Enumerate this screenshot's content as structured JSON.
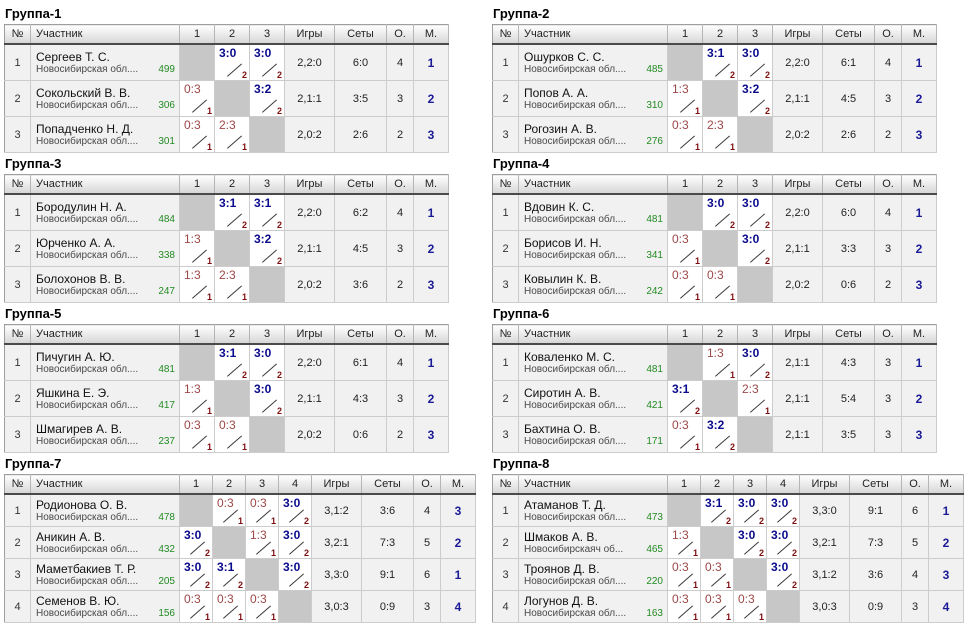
{
  "colors": {
    "win_score": "#0A0A8C",
    "loss_score": "#9C4848",
    "match_points": "#801010",
    "rating": "#228B22",
    "place": "#1A1A96",
    "region_text": "#4A4A4A"
  },
  "labels": {
    "num": "№",
    "participant": "Участник",
    "games": "Игры",
    "sets": "Сеты",
    "points": "О.",
    "place": "М."
  },
  "groups": [
    {
      "title": "Группа-1",
      "match_headers": [
        "1",
        "2",
        "3"
      ],
      "players": [
        {
          "num": "1",
          "name": "Сергеев Т. С.",
          "region": "Новосибирская обл....",
          "rating": "499",
          "matches": [
            null,
            {
              "score": "3:0",
              "win": true,
              "points": "2"
            },
            {
              "score": "3:0",
              "win": true,
              "points": "2"
            }
          ],
          "games": "2,2:0",
          "sets": "6:0",
          "points": "4",
          "place": "1"
        },
        {
          "num": "2",
          "name": "Сокольский В. В.",
          "region": "Новосибирская обл....",
          "rating": "306",
          "matches": [
            {
              "score": "0:3",
              "win": false,
              "points": "1"
            },
            null,
            {
              "score": "3:2",
              "win": true,
              "points": "2"
            }
          ],
          "games": "2,1:1",
          "sets": "3:5",
          "points": "3",
          "place": "2"
        },
        {
          "num": "3",
          "name": "Попадченко Н. Д.",
          "region": "Новосибирская обл....",
          "rating": "301",
          "matches": [
            {
              "score": "0:3",
              "win": false,
              "points": "1"
            },
            {
              "score": "2:3",
              "win": false,
              "points": "1"
            },
            null
          ],
          "games": "2,0:2",
          "sets": "2:6",
          "points": "2",
          "place": "3"
        }
      ]
    },
    {
      "title": "Группа-2",
      "match_headers": [
        "1",
        "2",
        "3"
      ],
      "players": [
        {
          "num": "1",
          "name": "Ошурков С. С.",
          "region": "Новосибирская обл....",
          "rating": "485",
          "matches": [
            null,
            {
              "score": "3:1",
              "win": true,
              "points": "2"
            },
            {
              "score": "3:0",
              "win": true,
              "points": "2"
            }
          ],
          "games": "2,2:0",
          "sets": "6:1",
          "points": "4",
          "place": "1"
        },
        {
          "num": "2",
          "name": "Попов А. А.",
          "region": "Новосибирская обл....",
          "rating": "310",
          "matches": [
            {
              "score": "1:3",
              "win": false,
              "points": "1"
            },
            null,
            {
              "score": "3:2",
              "win": true,
              "points": "2"
            }
          ],
          "games": "2,1:1",
          "sets": "4:5",
          "points": "3",
          "place": "2"
        },
        {
          "num": "3",
          "name": "Рогозин А. В.",
          "region": "Новосибирская обл....",
          "rating": "276",
          "matches": [
            {
              "score": "0:3",
              "win": false,
              "points": "1"
            },
            {
              "score": "2:3",
              "win": false,
              "points": "1"
            },
            null
          ],
          "games": "2,0:2",
          "sets": "2:6",
          "points": "2",
          "place": "3"
        }
      ]
    },
    {
      "title": "Группа-3",
      "match_headers": [
        "1",
        "2",
        "3"
      ],
      "players": [
        {
          "num": "1",
          "name": "Бородулин Н. А.",
          "region": "Новосибирская обл....",
          "rating": "484",
          "matches": [
            null,
            {
              "score": "3:1",
              "win": true,
              "points": "2"
            },
            {
              "score": "3:1",
              "win": true,
              "points": "2"
            }
          ],
          "games": "2,2:0",
          "sets": "6:2",
          "points": "4",
          "place": "1"
        },
        {
          "num": "2",
          "name": "Юрченко А. А.",
          "region": "Новосибирская обл....",
          "rating": "338",
          "matches": [
            {
              "score": "1:3",
              "win": false,
              "points": "1"
            },
            null,
            {
              "score": "3:2",
              "win": true,
              "points": "2"
            }
          ],
          "games": "2,1:1",
          "sets": "4:5",
          "points": "3",
          "place": "2"
        },
        {
          "num": "3",
          "name": "Болохонов В. В.",
          "region": "Новосибирская обл....",
          "rating": "247",
          "matches": [
            {
              "score": "1:3",
              "win": false,
              "points": "1"
            },
            {
              "score": "2:3",
              "win": false,
              "points": "1"
            },
            null
          ],
          "games": "2,0:2",
          "sets": "3:6",
          "points": "2",
          "place": "3"
        }
      ]
    },
    {
      "title": "Группа-4",
      "match_headers": [
        "1",
        "2",
        "3"
      ],
      "players": [
        {
          "num": "1",
          "name": "Вдовин К. С.",
          "region": "Новосибирская обл....",
          "rating": "481",
          "matches": [
            null,
            {
              "score": "3:0",
              "win": true,
              "points": "2"
            },
            {
              "score": "3:0",
              "win": true,
              "points": "2"
            }
          ],
          "games": "2,2:0",
          "sets": "6:0",
          "points": "4",
          "place": "1"
        },
        {
          "num": "2",
          "name": "Борисов И. Н.",
          "region": "Новосибирская обл....",
          "rating": "341",
          "matches": [
            {
              "score": "0:3",
              "win": false,
              "points": "1"
            },
            null,
            {
              "score": "3:0",
              "win": true,
              "points": "2"
            }
          ],
          "games": "2,1:1",
          "sets": "3:3",
          "points": "3",
          "place": "2"
        },
        {
          "num": "3",
          "name": "Ковылин К. В.",
          "region": "Новосибирская обл....",
          "rating": "242",
          "matches": [
            {
              "score": "0:3",
              "win": false,
              "points": "1"
            },
            {
              "score": "0:3",
              "win": false,
              "points": "1"
            },
            null
          ],
          "games": "2,0:2",
          "sets": "0:6",
          "points": "2",
          "place": "3"
        }
      ]
    },
    {
      "title": "Группа-5",
      "match_headers": [
        "1",
        "2",
        "3"
      ],
      "players": [
        {
          "num": "1",
          "name": "Пичугин А. Ю.",
          "region": "Новосибирская обл....",
          "rating": "481",
          "matches": [
            null,
            {
              "score": "3:1",
              "win": true,
              "points": "2"
            },
            {
              "score": "3:0",
              "win": true,
              "points": "2"
            }
          ],
          "games": "2,2:0",
          "sets": "6:1",
          "points": "4",
          "place": "1"
        },
        {
          "num": "2",
          "name": "Яшкина Е. Э.",
          "region": "Новосибирская обл....",
          "rating": "417",
          "matches": [
            {
              "score": "1:3",
              "win": false,
              "points": "1"
            },
            null,
            {
              "score": "3:0",
              "win": true,
              "points": "2"
            }
          ],
          "games": "2,1:1",
          "sets": "4:3",
          "points": "3",
          "place": "2"
        },
        {
          "num": "3",
          "name": "Шмагирев А. В.",
          "region": "Новосибирская обл....",
          "rating": "237",
          "matches": [
            {
              "score": "0:3",
              "win": false,
              "points": "1"
            },
            {
              "score": "0:3",
              "win": false,
              "points": "1"
            },
            null
          ],
          "games": "2,0:2",
          "sets": "0:6",
          "points": "2",
          "place": "3"
        }
      ]
    },
    {
      "title": "Группа-6",
      "match_headers": [
        "1",
        "2",
        "3"
      ],
      "players": [
        {
          "num": "1",
          "name": "Коваленко М. С.",
          "region": "Новосибирская обл....",
          "rating": "481",
          "matches": [
            null,
            {
              "score": "1:3",
              "win": false,
              "points": "1"
            },
            {
              "score": "3:0",
              "win": true,
              "points": "2"
            }
          ],
          "games": "2,1:1",
          "sets": "4:3",
          "points": "3",
          "place": "1"
        },
        {
          "num": "2",
          "name": "Сиротин А. В.",
          "region": "Новосибирская обл....",
          "rating": "421",
          "matches": [
            {
              "score": "3:1",
              "win": true,
              "points": "2"
            },
            null,
            {
              "score": "2:3",
              "win": false,
              "points": "1"
            }
          ],
          "games": "2,1:1",
          "sets": "5:4",
          "points": "3",
          "place": "2"
        },
        {
          "num": "3",
          "name": "Бахтина О. В.",
          "region": "Новосибирская обл....",
          "rating": "171",
          "matches": [
            {
              "score": "0:3",
              "win": false,
              "points": "1"
            },
            {
              "score": "3:2",
              "win": true,
              "points": "2"
            },
            null
          ],
          "games": "2,1:1",
          "sets": "3:5",
          "points": "3",
          "place": "3"
        }
      ]
    },
    {
      "title": "Группа-7",
      "match_headers": [
        "1",
        "2",
        "3",
        "4"
      ],
      "players": [
        {
          "num": "1",
          "name": "Родионова О. В.",
          "region": "Новосибирская обл....",
          "rating": "478",
          "matches": [
            null,
            {
              "score": "0:3",
              "win": false,
              "points": "1"
            },
            {
              "score": "0:3",
              "win": false,
              "points": "1"
            },
            {
              "score": "3:0",
              "win": true,
              "points": "2"
            }
          ],
          "games": "3,1:2",
          "sets": "3:6",
          "points": "4",
          "place": "3"
        },
        {
          "num": "2",
          "name": "Аникин А. В.",
          "region": "Новосибирская обл....",
          "rating": "432",
          "matches": [
            {
              "score": "3:0",
              "win": true,
              "points": "2"
            },
            null,
            {
              "score": "1:3",
              "win": false,
              "points": "1"
            },
            {
              "score": "3:0",
              "win": true,
              "points": "2"
            }
          ],
          "games": "3,2:1",
          "sets": "7:3",
          "points": "5",
          "place": "2"
        },
        {
          "num": "3",
          "name": "Маметбакиев Т. Р.",
          "region": "Новосибирская обл....",
          "rating": "205",
          "matches": [
            {
              "score": "3:0",
              "win": true,
              "points": "2"
            },
            {
              "score": "3:1",
              "win": true,
              "points": "2"
            },
            null,
            {
              "score": "3:0",
              "win": true,
              "points": "2"
            }
          ],
          "games": "3,3:0",
          "sets": "9:1",
          "points": "6",
          "place": "1"
        },
        {
          "num": "4",
          "name": "Семенов В. Ю.",
          "region": "Новосибирская обл....",
          "rating": "156",
          "matches": [
            {
              "score": "0:3",
              "win": false,
              "points": "1"
            },
            {
              "score": "0:3",
              "win": false,
              "points": "1"
            },
            {
              "score": "0:3",
              "win": false,
              "points": "1"
            },
            null
          ],
          "games": "3,0:3",
          "sets": "0:9",
          "points": "3",
          "place": "4"
        }
      ]
    },
    {
      "title": "Группа-8",
      "match_headers": [
        "1",
        "2",
        "3",
        "4"
      ],
      "players": [
        {
          "num": "1",
          "name": "Атаманов Т. Д.",
          "region": "Новосибирская обл....",
          "rating": "473",
          "matches": [
            null,
            {
              "score": "3:1",
              "win": true,
              "points": "2"
            },
            {
              "score": "3:0",
              "win": true,
              "points": "2"
            },
            {
              "score": "3:0",
              "win": true,
              "points": "2"
            }
          ],
          "games": "3,3:0",
          "sets": "9:1",
          "points": "6",
          "place": "1"
        },
        {
          "num": "2",
          "name": "Шмаков А. В.",
          "region": "Новосибирскаяч об...",
          "rating": "465",
          "matches": [
            {
              "score": "1:3",
              "win": false,
              "points": "1"
            },
            null,
            {
              "score": "3:0",
              "win": true,
              "points": "2"
            },
            {
              "score": "3:0",
              "win": true,
              "points": "2"
            }
          ],
          "games": "3,2:1",
          "sets": "7:3",
          "points": "5",
          "place": "2"
        },
        {
          "num": "3",
          "name": "Троянов Д. В.",
          "region": "Новосибирская обл....",
          "rating": "220",
          "matches": [
            {
              "score": "0:3",
              "win": false,
              "points": "1"
            },
            {
              "score": "0:3",
              "win": false,
              "points": "1"
            },
            null,
            {
              "score": "3:0",
              "win": true,
              "points": "2"
            }
          ],
          "games": "3,1:2",
          "sets": "3:6",
          "points": "4",
          "place": "3"
        },
        {
          "num": "4",
          "name": "Логунов Д. В.",
          "region": "Новосибирская обл....",
          "rating": "163",
          "matches": [
            {
              "score": "0:3",
              "win": false,
              "points": "1"
            },
            {
              "score": "0:3",
              "win": false,
              "points": "1"
            },
            {
              "score": "0:3",
              "win": false,
              "points": "1"
            },
            null
          ],
          "games": "3,0:3",
          "sets": "0:9",
          "points": "3",
          "place": "4"
        }
      ]
    }
  ]
}
